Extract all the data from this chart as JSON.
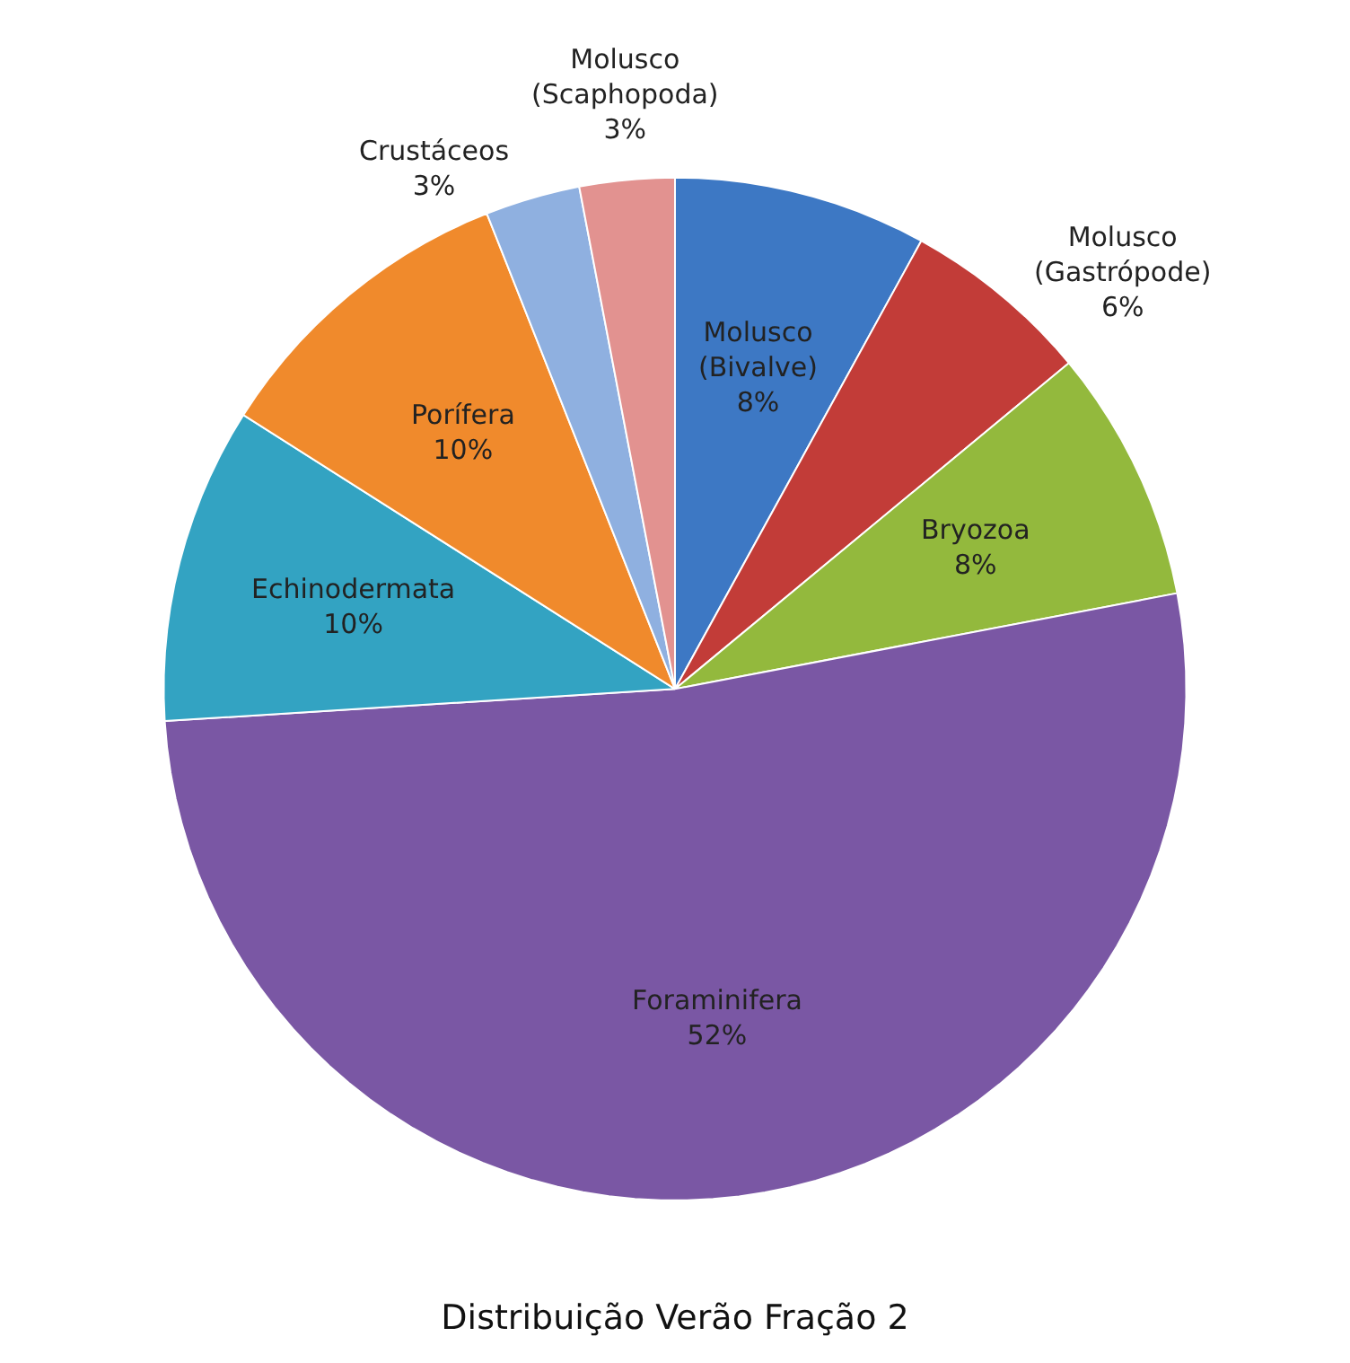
{
  "chart_data": {
    "type": "pie",
    "title": "Distribuição Verão Fração 2",
    "categories": [
      "Molusco (Bivalve)",
      "Molusco (Gastrópode)",
      "Bryozoa",
      "Foraminifera",
      "Echinodermata",
      "Porífera",
      "Crustáceos",
      "Molusco (Scaphopoda)"
    ],
    "values": [
      8,
      6,
      8,
      52,
      10,
      10,
      3,
      3
    ],
    "value_labels": [
      "8%",
      "6%",
      "8%",
      "52%",
      "10%",
      "10%",
      "3%",
      "3%"
    ],
    "colors": [
      "#3d78c4",
      "#c23c38",
      "#93b93d",
      "#7a57a4",
      "#33a3c2",
      "#f08a2c",
      "#8fb0e0",
      "#e29290"
    ],
    "legend": false
  }
}
